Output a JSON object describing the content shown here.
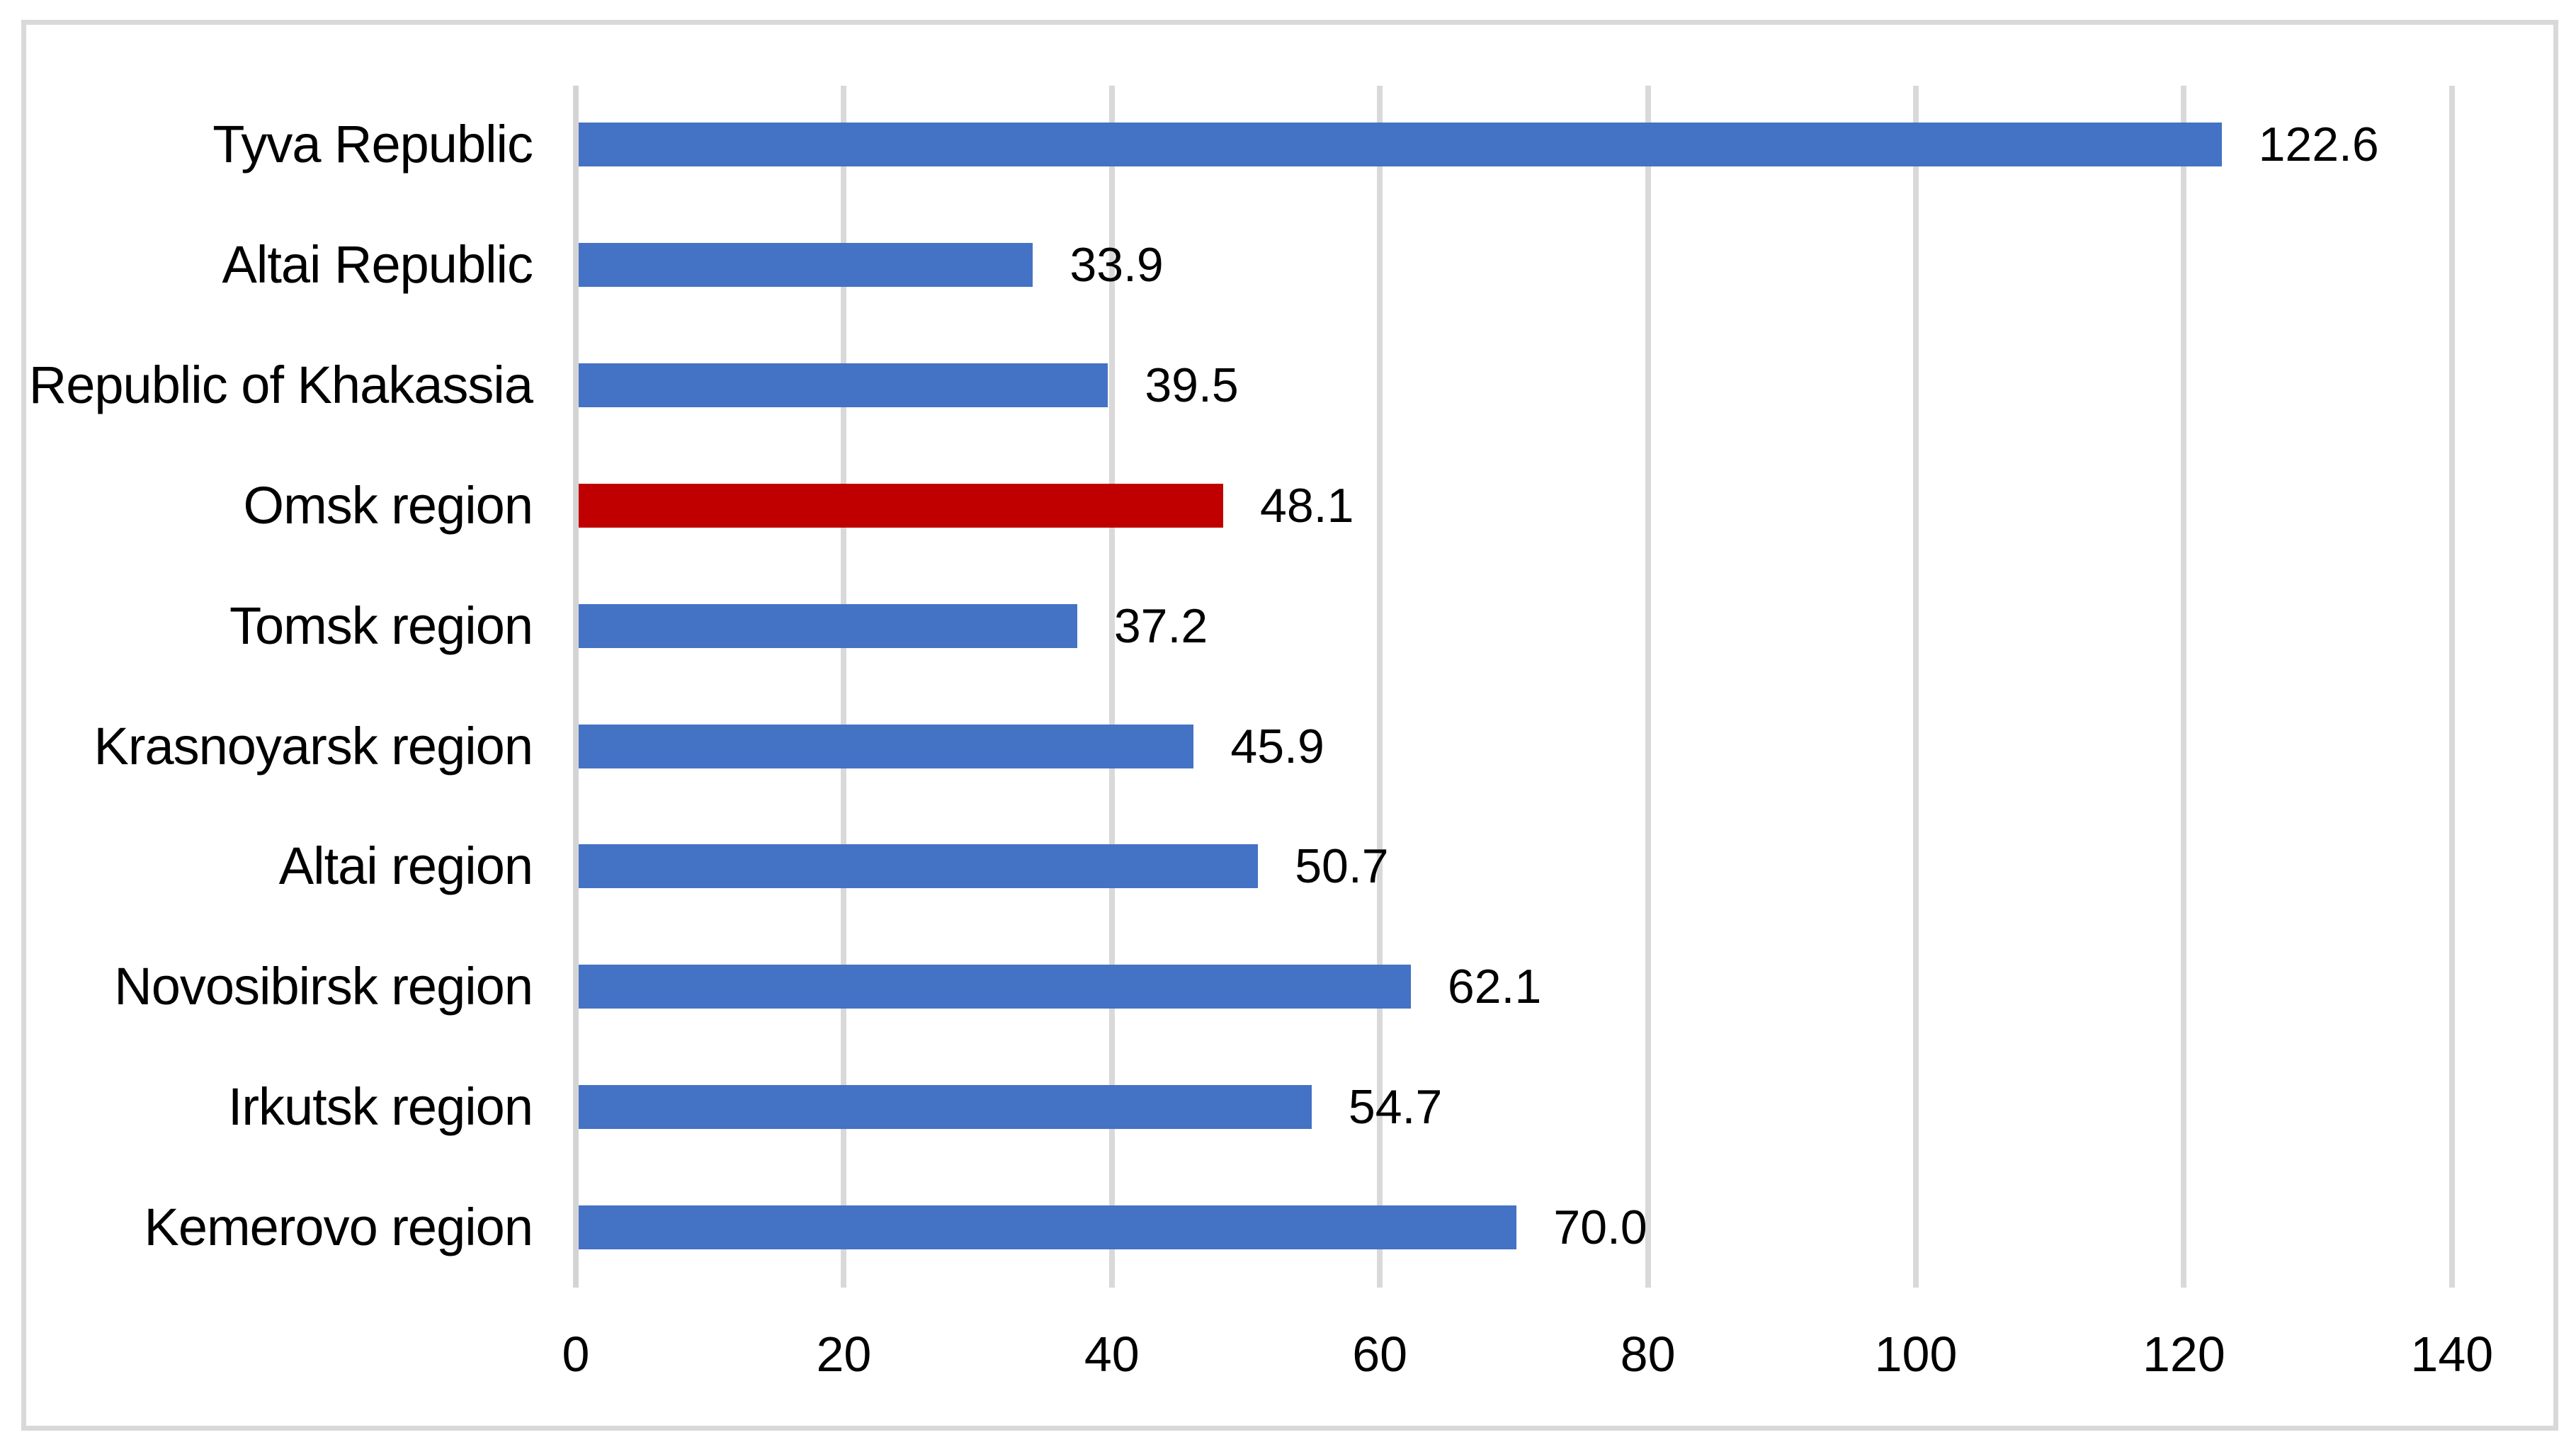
{
  "chart_data": {
    "type": "bar",
    "orientation": "horizontal",
    "title": "",
    "xlabel": "",
    "ylabel": "",
    "grid": true,
    "legend": null,
    "categories": [
      "Tyva Republic",
      "Altai Republic",
      "Republic of Khakassia",
      "Omsk region",
      "Tomsk region",
      "Krasnoyarsk region",
      "Altai region",
      "Novosibirsk region",
      "Irkutsk region",
      "Kemerovo region"
    ],
    "values": [
      122.6,
      33.9,
      39.5,
      48.1,
      37.2,
      45.9,
      50.7,
      62.1,
      54.7,
      70.0
    ],
    "value_labels": [
      "122.6",
      "33.9",
      "39.5",
      "48.1",
      "37.2",
      "45.9",
      "50.7",
      "62.1",
      "54.7",
      "70.0"
    ],
    "highlighted_category": "Omsk region",
    "highlight_index": 3,
    "bar_color": "#4472C4",
    "highlight_color": "#C00000",
    "xlim": [
      0,
      140
    ],
    "x_tick_values": [
      0,
      20,
      40,
      60,
      80,
      100,
      120,
      140
    ],
    "x_tick_labels": [
      "0",
      "20",
      "40",
      "60",
      "80",
      "100",
      "120",
      "140"
    ],
    "gridline_color": "#D9D9D9",
    "text_color": "#000000"
  }
}
